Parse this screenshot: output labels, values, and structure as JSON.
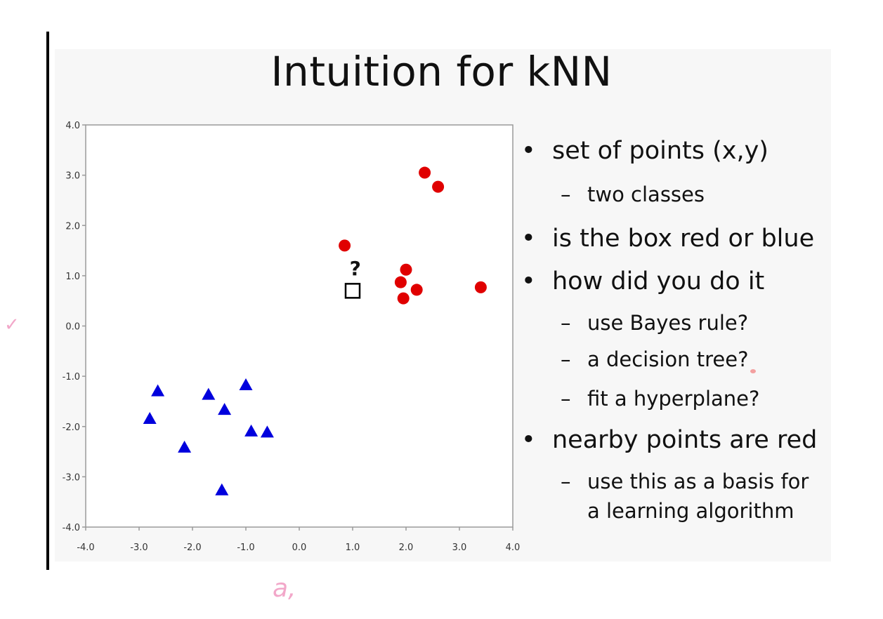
{
  "slide": {
    "title": "Intuition for kNN",
    "bullets": [
      {
        "level": 1,
        "text": "set of points (x,y)"
      },
      {
        "level": 2,
        "text": "two classes"
      },
      {
        "level": 1,
        "text": "is the box red or blue"
      },
      {
        "level": 1,
        "text": "how did you do it"
      },
      {
        "level": 2,
        "text": "use Bayes rule?"
      },
      {
        "level": 2,
        "text": "a decision tree?"
      },
      {
        "level": 2,
        "text": "fit a hyperplane?"
      },
      {
        "level": 1,
        "text": "nearby points are red"
      },
      {
        "level": 2,
        "text": "use this as a basis for"
      },
      {
        "level": 2,
        "text": "a learning algorithm",
        "continuation": true
      }
    ],
    "annotations": {
      "bottom_note": "a,",
      "left_check": "✓"
    }
  },
  "chart_data": {
    "type": "scatter",
    "xlim": [
      -4.0,
      4.0
    ],
    "ylim": [
      -4.0,
      4.0
    ],
    "x_ticks": [
      "-4.0",
      "-3.0",
      "-2.0",
      "-1.0",
      "0.0",
      "1.0",
      "2.0",
      "3.0",
      "4.0"
    ],
    "y_ticks": [
      "4.0",
      "3.0",
      "2.0",
      "1.0",
      "0.0",
      "-1.0",
      "-2.0",
      "-3.0",
      "-4.0"
    ],
    "grid": false,
    "series": [
      {
        "marker": "circle",
        "color": "#e00000",
        "points": [
          [
            2.35,
            3.05
          ],
          [
            2.6,
            2.77
          ],
          [
            0.85,
            1.6
          ],
          [
            2.0,
            1.12
          ],
          [
            1.9,
            0.87
          ],
          [
            2.2,
            0.72
          ],
          [
            1.95,
            0.55
          ],
          [
            3.4,
            0.77
          ]
        ]
      },
      {
        "marker": "triangle",
        "color": "#0000dd",
        "points": [
          [
            -2.65,
            -1.3
          ],
          [
            -2.8,
            -1.85
          ],
          [
            -1.7,
            -1.37
          ],
          [
            -1.4,
            -1.67
          ],
          [
            -1.0,
            -1.18
          ],
          [
            -0.9,
            -2.1
          ],
          [
            -0.6,
            -2.12
          ],
          [
            -2.15,
            -2.42
          ],
          [
            -1.45,
            -3.27
          ]
        ]
      },
      {
        "marker": "square",
        "color": "#000000",
        "points": [
          [
            1.0,
            0.7
          ]
        ]
      }
    ],
    "annotations": [
      {
        "text": "?",
        "x": 1.05,
        "y": 1.15
      }
    ]
  }
}
